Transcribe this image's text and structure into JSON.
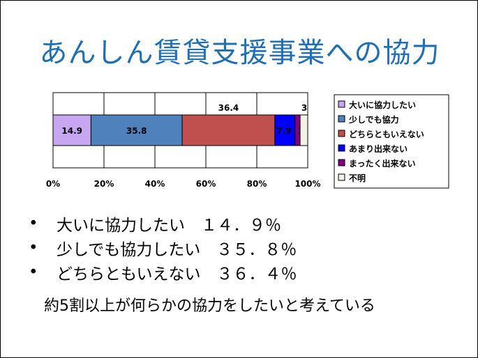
{
  "title": "あんしん賃貸支援事業への協力",
  "bullets": [
    "大いに協力したい　１４．９％",
    "少しでも協力したい　３５．８％",
    "どちらともいえない　３６．４％"
  ],
  "bullet_marker": "•",
  "note": "約5割以上が何らかの協力をしたいと考えている",
  "chart_data": {
    "type": "bar",
    "orientation": "horizontal-stacked-100",
    "xlim": [
      0,
      100
    ],
    "x_ticks": [
      "0%",
      "20%",
      "40%",
      "60%",
      "80%",
      "100%"
    ],
    "grid": true,
    "legend_position": "right",
    "series": [
      {
        "name": "大いに協力したい",
        "value": 14.9,
        "label": "14.9",
        "color": "#c9a6f2",
        "label_pos": "inside"
      },
      {
        "name": "少しでも協力",
        "value": 35.8,
        "label": "35.8",
        "color": "#4f81bd",
        "label_pos": "inside"
      },
      {
        "name": "どちらともいえない",
        "value": 36.4,
        "label": "36.4",
        "color": "#c0504d",
        "label_pos": "above"
      },
      {
        "name": "あまり出来ない",
        "value": 7.9,
        "label": "7.9",
        "color": "#0000ff",
        "label_pos": "inside"
      },
      {
        "name": "まったく出来ない",
        "value": 2,
        "label": "2",
        "color": "#800080",
        "label_pos": "inside"
      },
      {
        "name": "不明",
        "value": 3,
        "label": "3",
        "color": "#f5f1e6",
        "label_pos": "above"
      }
    ]
  }
}
